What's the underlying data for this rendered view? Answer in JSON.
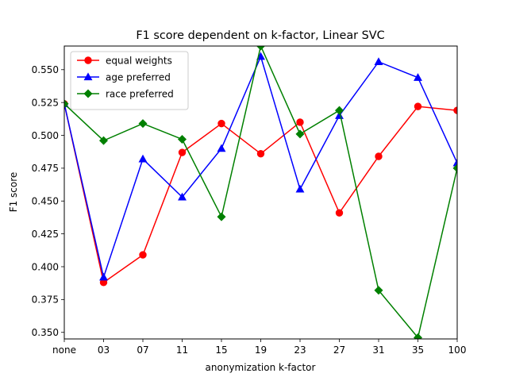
{
  "chart_data": {
    "type": "line",
    "title": "F1 score dependent on k-factor, Linear SVC",
    "xlabel": "anonymization k-factor",
    "ylabel": "F1 score",
    "categories": [
      "none",
      "03",
      "07",
      "11",
      "15",
      "19",
      "23",
      "27",
      "31",
      "35",
      "100"
    ],
    "ylim": [
      0.345,
      0.568
    ],
    "yticks": [
      0.35,
      0.375,
      0.4,
      0.425,
      0.45,
      0.475,
      0.5,
      0.525,
      0.55
    ],
    "ytick_labels": [
      "0.350",
      "0.375",
      "0.400",
      "0.425",
      "0.450",
      "0.475",
      "0.500",
      "0.525",
      "0.550"
    ],
    "grid": false,
    "legend_position": "top-left",
    "series": [
      {
        "name": "equal weights",
        "color": "#ff0000",
        "marker": "circle",
        "values": [
          0.524,
          0.388,
          0.409,
          0.487,
          0.509,
          0.486,
          0.51,
          0.441,
          0.484,
          0.522,
          0.519
        ]
      },
      {
        "name": "age preferred",
        "color": "#0000ff",
        "marker": "triangle",
        "values": [
          0.524,
          0.392,
          0.482,
          0.453,
          0.49,
          0.56,
          0.459,
          0.515,
          0.556,
          0.544,
          0.479
        ]
      },
      {
        "name": "race preferred",
        "color": "#008000",
        "marker": "diamond",
        "values": [
          0.524,
          0.496,
          0.509,
          0.497,
          0.438,
          0.568,
          0.501,
          0.519,
          0.382,
          0.346,
          0.475
        ]
      }
    ]
  }
}
